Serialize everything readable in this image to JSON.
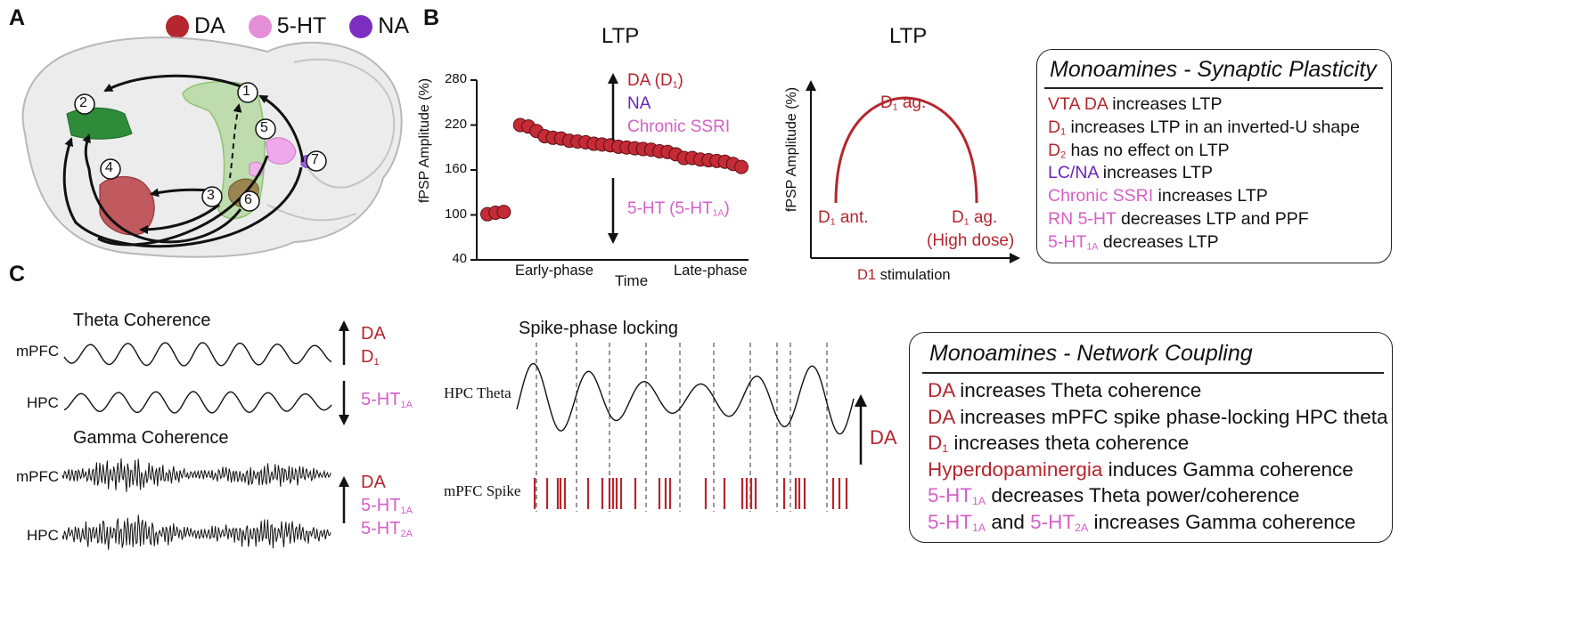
{
  "colors": {
    "da": "#b5262e",
    "serotonin": "#d65fc8",
    "na": "#6a23b8",
    "dot_fill": "#c42b36",
    "line": "#111111"
  },
  "panel_labels": {
    "a": "A",
    "b": "B",
    "c": "C"
  },
  "legend": [
    {
      "label": "DA",
      "color": "#b5262e"
    },
    {
      "label": "5-HT",
      "color": "#e58fd8"
    },
    {
      "label": "NA",
      "color": "#7b2ec0"
    }
  ],
  "brain": {
    "region_numbers": [
      "1",
      "2",
      "3",
      "4",
      "5",
      "6",
      "7"
    ]
  },
  "ltp_chart": {
    "title": "LTP",
    "ylabel": "fPSP Amplitude (%)",
    "xlabel": "Time",
    "yticks": [
      "280",
      "220",
      "160",
      "100",
      "40"
    ],
    "x_early": "Early-phase",
    "x_late": "Late-phase",
    "up_labels": [
      {
        "base": "DA (D",
        "sub": "1",
        "tail": ")",
        "class": "da"
      },
      {
        "base": "NA",
        "sub": "",
        "tail": "",
        "class": "na"
      },
      {
        "base": "Chronic SSRI",
        "sub": "",
        "tail": "",
        "class": "ht"
      }
    ],
    "down_label": {
      "base": "5-HT (5-HT",
      "sub": "1A",
      "tail": ")"
    }
  },
  "chart_data": {
    "type": "scatter",
    "title": "LTP",
    "xlabel": "Time",
    "ylabel": "fPSP Amplitude (%)",
    "ylim": [
      40,
      280
    ],
    "x": [
      1,
      2,
      3,
      5,
      6,
      7,
      8,
      9,
      10,
      11,
      12,
      13,
      14,
      15,
      16,
      17,
      18,
      19,
      20,
      21,
      22,
      23,
      24,
      25,
      26,
      27,
      28,
      29,
      30,
      31,
      32
    ],
    "y": [
      101,
      103,
      104,
      220,
      218,
      212,
      205,
      203,
      202,
      199,
      198,
      197,
      195,
      194,
      193,
      191,
      190,
      189,
      188,
      187,
      185,
      184,
      181,
      176,
      176,
      174,
      173,
      172,
      171,
      168,
      164
    ]
  },
  "dose_chart": {
    "title": "LTP",
    "ylabel": "fPSP Amplitude (%)",
    "xlabel_prefix": "D1",
    "xlabel_suffix": " stimulation",
    "peak_label": {
      "base": "D",
      "sub": "1",
      "tail": " ag."
    },
    "left_label": {
      "base": "D",
      "sub": "1",
      "tail": " ant."
    },
    "right_label": {
      "base": "D",
      "sub": "1",
      "tail": " ag."
    },
    "right_label2": "(High dose)"
  },
  "plasticity_box": {
    "title": "Monoamines - Synaptic Plasticity",
    "lines": [
      {
        "hl": "VTA DA",
        "hl_sub": "",
        "cls": "red",
        "rest": " increases LTP"
      },
      {
        "hl": "D",
        "hl_sub": "1",
        "cls": "red",
        "rest": " increases LTP in an inverted-U shape"
      },
      {
        "hl": "D",
        "hl_sub": "2",
        "cls": "red",
        "rest": " has no effect on LTP"
      },
      {
        "hl": "LC/NA",
        "hl_sub": "",
        "cls": "purple",
        "rest": " increases LTP"
      },
      {
        "hl": "Chronic SSRI",
        "hl_sub": "",
        "cls": "pink",
        "rest": " increases LTP"
      },
      {
        "hl": "RN 5-HT",
        "hl_sub": "",
        "cls": "pink",
        "rest": " decreases LTP and PPF"
      },
      {
        "hl": "5-HT",
        "hl_sub": "1A",
        "cls": "pink",
        "rest": " decreases LTP"
      }
    ]
  },
  "coherence": {
    "theta_title": "Theta Coherence",
    "gamma_title": "Gamma Coherence",
    "mpfc": "mPFC",
    "hpc": "HPC",
    "theta_up": [
      "DA",
      "D"
    ],
    "theta_up_sub": "1",
    "theta_down": "5-HT",
    "theta_down_sub": "1A",
    "gamma_up": "DA",
    "gamma_ht1": "5-HT",
    "gamma_ht1_sub": "1A",
    "gamma_ht2": "5-HT",
    "gamma_ht2_sub": "2A"
  },
  "spike": {
    "title": "Spike-phase locking",
    "theta_label": "HPC Theta",
    "spike_label": "mPFC Spike",
    "da_label": "DA"
  },
  "network_box": {
    "title": "Monoamines - Network Coupling",
    "lines": [
      {
        "segments": [
          {
            "t": "DA",
            "c": "red"
          },
          {
            "t": " increases Theta coherence",
            "c": ""
          }
        ]
      },
      {
        "segments": [
          {
            "t": "DA",
            "c": "red"
          },
          {
            "t": " increases mPFC spike phase-locking HPC theta",
            "c": ""
          }
        ]
      },
      {
        "segments": [
          {
            "t": "D",
            "c": "red",
            "sub": "1"
          },
          {
            "t": " increases theta coherence",
            "c": ""
          }
        ]
      },
      {
        "segments": [
          {
            "t": "Hyperdopaminergia",
            "c": "red"
          },
          {
            "t": " induces Gamma coherence",
            "c": ""
          }
        ]
      },
      {
        "segments": [
          {
            "t": "5-HT",
            "c": "pink",
            "sub": "1A"
          },
          {
            "t": " decreases Theta power/coherence",
            "c": ""
          }
        ]
      },
      {
        "segments": [
          {
            "t": "5-HT",
            "c": "pink",
            "sub": "1A"
          },
          {
            "t": " and ",
            "c": ""
          },
          {
            "t": "5-HT",
            "c": "pink",
            "sub": "2A"
          },
          {
            "t": " increases Gamma coherence",
            "c": ""
          }
        ]
      }
    ]
  }
}
